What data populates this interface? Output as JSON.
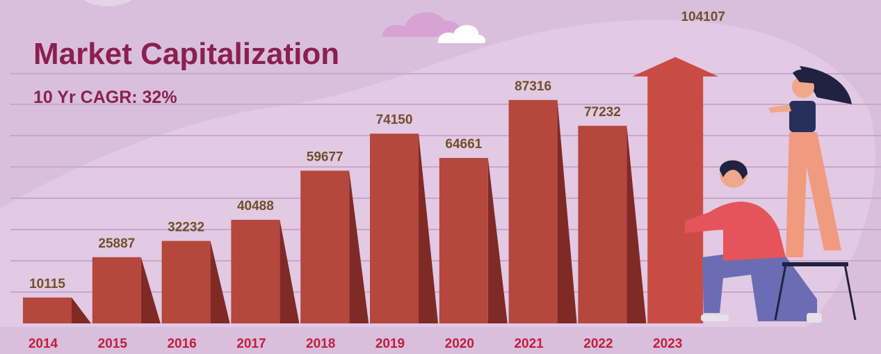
{
  "chart_data": {
    "type": "bar",
    "title": "Market Capitalization",
    "subtitle": "10 Yr CAGR: 32%",
    "categories": [
      "2014",
      "2015",
      "2016",
      "2017",
      "2018",
      "2019",
      "2020",
      "2021",
      "2022",
      "2023"
    ],
    "values": [
      10115,
      25887,
      32232,
      40488,
      59677,
      74150,
      64661,
      87316,
      77232,
      104107
    ],
    "color": "#b5473c"
  }
}
